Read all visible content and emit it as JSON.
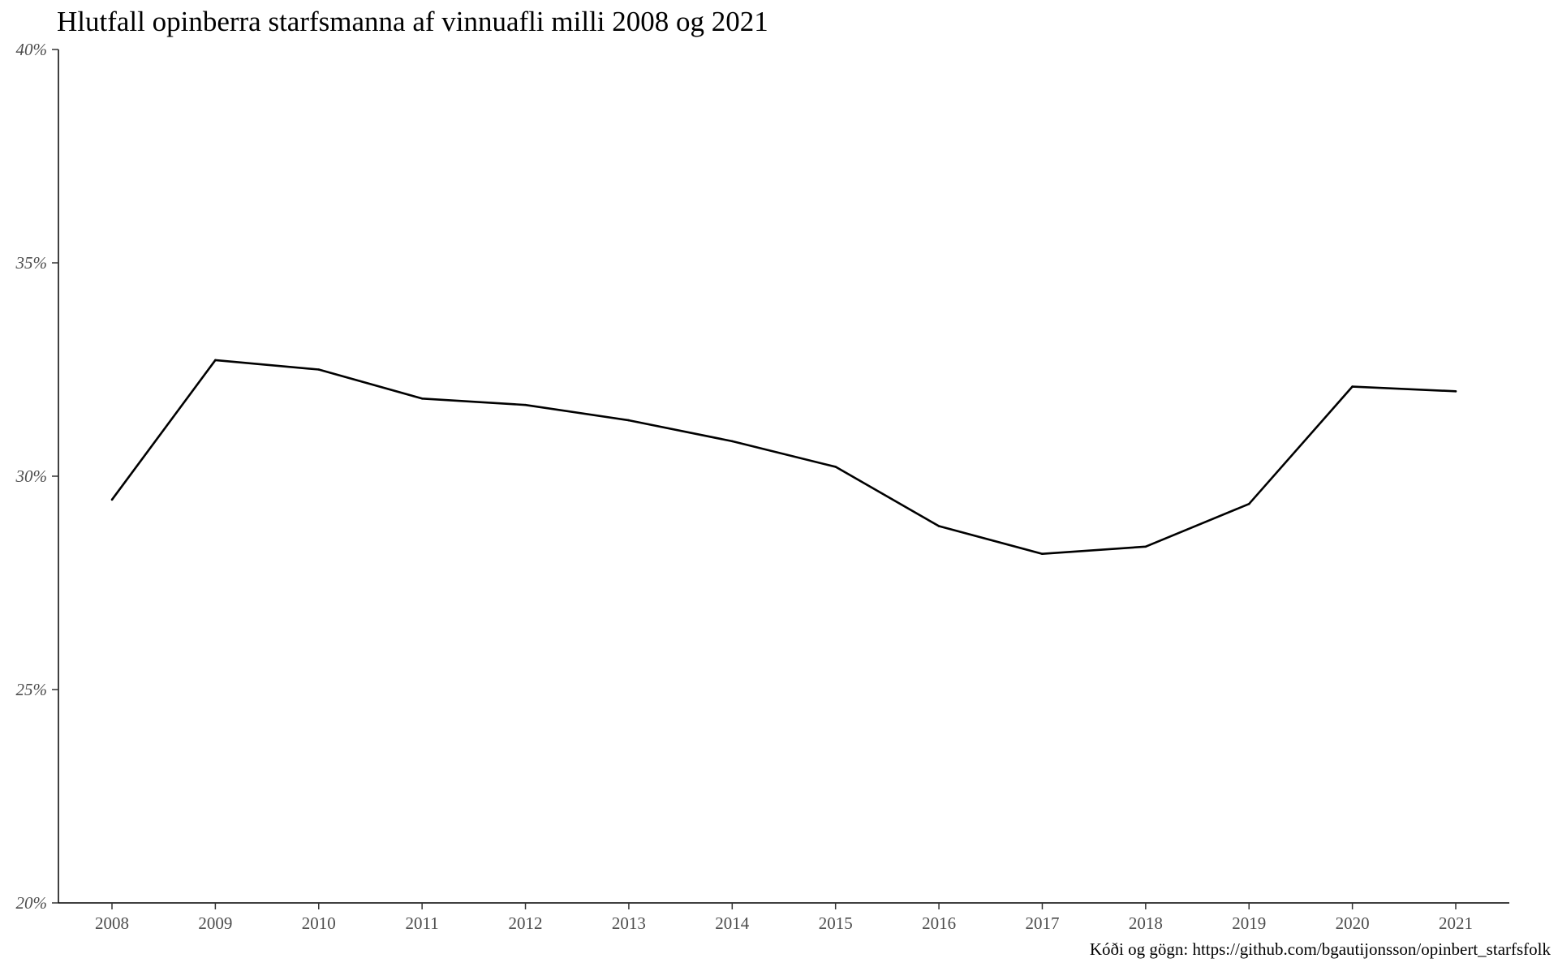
{
  "chart_data": {
    "type": "line",
    "title": "Hlutfall opinberra starfsmanna af vinnuafli milli 2008 og 2021",
    "caption": "Kóði og gögn: https://github.com/bgautijonsson/opinbert_starfsfolk",
    "xlabel": "",
    "ylabel": "",
    "x": [
      2008,
      2009,
      2010,
      2011,
      2012,
      2013,
      2014,
      2015,
      2016,
      2017,
      2018,
      2019,
      2020,
      2021
    ],
    "x_tick_labels": [
      "2008",
      "2009",
      "2010",
      "2011",
      "2012",
      "2013",
      "2014",
      "2015",
      "2016",
      "2017",
      "2018",
      "2019",
      "2020",
      "2021"
    ],
    "series": [
      {
        "values": [
          29.45,
          32.72,
          32.5,
          31.82,
          31.67,
          31.31,
          30.82,
          30.22,
          28.83,
          28.18,
          28.35,
          29.35,
          32.1,
          31.99
        ]
      }
    ],
    "ylim": [
      20,
      40
    ],
    "y_ticks": [
      20,
      25,
      30,
      35,
      40
    ],
    "y_tick_labels": [
      "20%",
      "25%",
      "30%",
      "35%",
      "40%"
    ],
    "grid": false,
    "legend": "none",
    "line_color": "#000000"
  }
}
